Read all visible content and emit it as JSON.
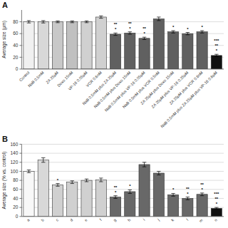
{
  "chart_data": [
    {
      "type": "bar",
      "title": "A",
      "ylabel": "Average size (μm)",
      "categories": [
        "Control",
        "NaB 0.5mM",
        "ZA 25μM",
        "Doxo 15nM",
        "VP-16 0.05μM",
        "VCR 0.6nM",
        "NaB 0.5mM plus ZA 25μM",
        "NaB 0.5mM plus Doxo 15nM",
        "NaB 0.5mM plus VP-16 0.05μM",
        "NaB 0.5mM plus VCR 0.5nM",
        "ZA 25μM plus Doxo 15nM",
        "ZA 25μM plus VP-16 0.25μM",
        "ZA 25μM plus VCR 0.6nM",
        "NaB 0.5mM plus ZA 25μM plus VP-16 0.6μM"
      ],
      "values": [
        80,
        80,
        80,
        80,
        80,
        88,
        59,
        61,
        52,
        85,
        63,
        60,
        63,
        23
      ],
      "errors": [
        2,
        2,
        1.5,
        1.5,
        1.5,
        2,
        2,
        2,
        2,
        3,
        2,
        2,
        2,
        2
      ],
      "colors": [
        "#f0f0f0",
        "#d8d8d8",
        "#c8c8c8",
        "#c0c0c0",
        "#d0d0d0",
        "#d0d0d0",
        "#606060",
        "#606060",
        "#606060",
        "#606060",
        "#606060",
        "#606060",
        "#606060",
        "#111111"
      ],
      "significance": [
        [],
        [],
        [],
        [],
        [],
        [],
        [
          "*",
          "**"
        ],
        [
          "*",
          "**"
        ],
        [
          "*",
          "**"
        ],
        [],
        [
          "*"
        ],
        [
          "*"
        ],
        [
          "*"
        ],
        [
          "*",
          "**",
          "***"
        ]
      ],
      "ylim": [
        0,
        100
      ],
      "yticks": [
        0,
        20,
        40,
        60,
        80
      ],
      "grid": true
    },
    {
      "type": "bar",
      "title": "B",
      "ylabel": "Average size (% vs. control)",
      "categories": [
        "a",
        "b",
        "c",
        "d",
        "e",
        "f",
        "g",
        "h",
        "i",
        "j",
        "k",
        "l",
        "m",
        "n"
      ],
      "values": [
        100,
        125,
        70,
        76,
        80,
        81,
        43,
        55,
        115,
        96,
        48,
        40,
        49,
        18
      ],
      "errors": [
        3,
        5,
        3,
        3,
        3,
        4,
        3,
        4,
        5,
        4,
        3,
        3,
        3,
        2
      ],
      "colors": [
        "#f8f8f8",
        "#d8d8d8",
        "#d0d0d0",
        "#d0d0d0",
        "#d0d0d0",
        "#d0d0d0",
        "#686868",
        "#686868",
        "#686868",
        "#686868",
        "#686868",
        "#686868",
        "#686868",
        "#111111"
      ],
      "significance": [
        [],
        [],
        [
          "*"
        ],
        [],
        [],
        [],
        [
          "*",
          "**"
        ],
        [
          "*"
        ],
        [],
        [],
        [
          "*"
        ],
        [
          "*",
          "**"
        ],
        [
          "*",
          "**"
        ],
        [
          "*",
          "**",
          "***"
        ]
      ],
      "ylim": [
        0,
        160
      ],
      "yticks": [
        0,
        20,
        40,
        60,
        80,
        100,
        120,
        140,
        160
      ],
      "grid": true
    }
  ]
}
